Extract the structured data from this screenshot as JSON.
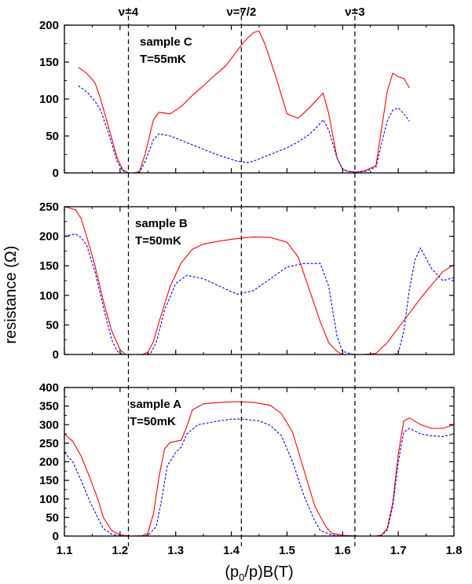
{
  "chart_data": {
    "type": "line",
    "shared_x": {
      "label": "(p₀/p)B(T)",
      "xlim": [
        1.1,
        1.8
      ],
      "ticks": [
        1.1,
        1.2,
        1.3,
        1.4,
        1.5,
        1.6,
        1.7,
        1.8
      ],
      "tick_labels": [
        "1.1",
        "1.2",
        "1.3",
        "1.4",
        "1.5",
        "1.6",
        "1.7",
        "1.8"
      ]
    },
    "ylabel": "resistance (Ω)",
    "filling_factor_lines": [
      {
        "label": "ν=4",
        "x": 1.215
      },
      {
        "label": "ν=7/2",
        "x": 1.418
      },
      {
        "label": "ν=3",
        "x": 1.622
      }
    ],
    "panels": [
      {
        "id": "C",
        "annotation": [
          "sample C",
          "T=55mK"
        ],
        "ylim": [
          0,
          200
        ],
        "yticks": [
          0,
          50,
          100,
          150,
          200
        ],
        "series": [
          {
            "color": "#ff0000",
            "style": "solid",
            "x": [
              1.125,
              1.14,
              1.155,
              1.165,
              1.18,
              1.195,
              1.205,
              1.215,
              1.225,
              1.235,
              1.245,
              1.26,
              1.27,
              1.29,
              1.31,
              1.33,
              1.35,
              1.37,
              1.39,
              1.41,
              1.42,
              1.43,
              1.44,
              1.45,
              1.46,
              1.48,
              1.5,
              1.52,
              1.54,
              1.555,
              1.565,
              1.575,
              1.59,
              1.6,
              1.61,
              1.625,
              1.64,
              1.66,
              1.67,
              1.68,
              1.69,
              1.7,
              1.71,
              1.72
            ],
            "y": [
              143,
              135,
              122,
              100,
              60,
              20,
              4,
              0,
              0,
              2,
              25,
              72,
              82,
              80,
              90,
              105,
              118,
              132,
              145,
              165,
              175,
              183,
              190,
              192,
              175,
              130,
              80,
              74,
              88,
              100,
              108,
              80,
              20,
              5,
              2,
              1,
              3,
              10,
              60,
              110,
              135,
              130,
              128,
              115
            ]
          },
          {
            "color": "#0000ff",
            "style": "dashed",
            "x": [
              1.125,
              1.14,
              1.155,
              1.165,
              1.18,
              1.195,
              1.205,
              1.215,
              1.225,
              1.235,
              1.245,
              1.26,
              1.27,
              1.29,
              1.31,
              1.33,
              1.35,
              1.37,
              1.39,
              1.41,
              1.42,
              1.43,
              1.44,
              1.46,
              1.48,
              1.5,
              1.52,
              1.54,
              1.555,
              1.565,
              1.575,
              1.59,
              1.6,
              1.61,
              1.625,
              1.64,
              1.66,
              1.67,
              1.68,
              1.69,
              1.7,
              1.71,
              1.72
            ],
            "y": [
              118,
              110,
              97,
              85,
              52,
              15,
              3,
              0,
              0,
              1,
              15,
              45,
              53,
              50,
              44,
              38,
              32,
              26,
              21,
              16,
              15,
              14,
              16,
              22,
              28,
              34,
              42,
              52,
              63,
              72,
              58,
              20,
              5,
              2,
              1,
              2,
              8,
              40,
              70,
              85,
              88,
              80,
              70
            ]
          }
        ]
      },
      {
        "id": "B",
        "annotation": [
          "sample B",
          "T=50mK"
        ],
        "ylim": [
          0,
          250
        ],
        "yticks": [
          0,
          50,
          100,
          150,
          200,
          250
        ],
        "series": [
          {
            "color": "#ff0000",
            "style": "solid",
            "x": [
              1.1,
              1.12,
              1.13,
              1.14,
              1.155,
              1.17,
              1.185,
              1.2,
              1.21,
              1.23,
              1.24,
              1.25,
              1.26,
              1.27,
              1.29,
              1.31,
              1.33,
              1.35,
              1.38,
              1.41,
              1.44,
              1.47,
              1.5,
              1.52,
              1.54,
              1.56,
              1.575,
              1.59,
              1.6,
              1.61,
              1.62,
              1.64,
              1.66,
              1.68,
              1.7,
              1.72,
              1.74,
              1.76,
              1.78,
              1.8
            ],
            "y": [
              250,
              245,
              230,
              200,
              150,
              90,
              40,
              8,
              0,
              0,
              0,
              4,
              22,
              55,
              115,
              155,
              178,
              187,
              192,
              196,
              199,
              198,
              190,
              165,
              110,
              55,
              20,
              5,
              0,
              0,
              0,
              0,
              2,
              20,
              45,
              70,
              95,
              118,
              140,
              152
            ]
          },
          {
            "color": "#0000ff",
            "style": "dashed",
            "x": [
              1.1,
              1.12,
              1.13,
              1.14,
              1.155,
              1.17,
              1.185,
              1.195,
              1.205,
              1.215,
              1.23,
              1.245,
              1.255,
              1.265,
              1.28,
              1.3,
              1.32,
              1.35,
              1.38,
              1.41,
              1.44,
              1.47,
              1.5,
              1.53,
              1.56,
              1.575,
              1.59,
              1.6,
              1.62,
              1.64,
              1.66,
              1.68,
              1.69,
              1.7,
              1.71,
              1.72,
              1.73,
              1.74,
              1.76,
              1.78,
              1.8
            ],
            "y": [
              200,
              204,
              198,
              185,
              140,
              80,
              25,
              5,
              0,
              0,
              0,
              0,
              2,
              20,
              75,
              120,
              134,
              128,
              115,
              102,
              108,
              128,
              148,
              154,
              154,
              115,
              30,
              5,
              0,
              0,
              0,
              0,
              0,
              2,
              40,
              110,
              160,
              180,
              145,
              125,
              130
            ]
          }
        ]
      },
      {
        "id": "A",
        "annotation": [
          "sample A",
          "T=50mK"
        ],
        "ylim": [
          0,
          400
        ],
        "yticks": [
          0,
          50,
          100,
          150,
          200,
          250,
          300,
          350,
          400
        ],
        "series": [
          {
            "color": "#ff0000",
            "style": "solid",
            "x": [
              1.1,
              1.115,
              1.13,
              1.145,
              1.16,
              1.17,
              1.185,
              1.2,
              1.22,
              1.24,
              1.25,
              1.26,
              1.27,
              1.28,
              1.29,
              1.31,
              1.32,
              1.33,
              1.35,
              1.38,
              1.41,
              1.44,
              1.47,
              1.49,
              1.51,
              1.53,
              1.55,
              1.57,
              1.58,
              1.6,
              1.63,
              1.66,
              1.67,
              1.68,
              1.69,
              1.7,
              1.71,
              1.72,
              1.74,
              1.76,
              1.78,
              1.8
            ],
            "y": [
              275,
              255,
              215,
              160,
              100,
              50,
              15,
              3,
              0,
              1,
              8,
              60,
              160,
              235,
              252,
              258,
              295,
              340,
              356,
              360,
              362,
              360,
              352,
              330,
              280,
              180,
              80,
              25,
              8,
              2,
              0,
              0,
              3,
              20,
              90,
              220,
              310,
              318,
              300,
              290,
              290,
              300
            ]
          },
          {
            "color": "#0000ff",
            "style": "dashed",
            "x": [
              1.1,
              1.115,
              1.13,
              1.145,
              1.16,
              1.17,
              1.185,
              1.2,
              1.22,
              1.24,
              1.25,
              1.265,
              1.275,
              1.285,
              1.3,
              1.31,
              1.32,
              1.34,
              1.37,
              1.4,
              1.42,
              1.45,
              1.47,
              1.49,
              1.51,
              1.53,
              1.55,
              1.56,
              1.58,
              1.6,
              1.63,
              1.66,
              1.67,
              1.68,
              1.69,
              1.7,
              1.71,
              1.72,
              1.74,
              1.76,
              1.78,
              1.8
            ],
            "y": [
              225,
              200,
              150,
              95,
              50,
              20,
              5,
              0,
              0,
              0,
              2,
              25,
              100,
              190,
              225,
              240,
              275,
              300,
              308,
              315,
              315,
              310,
              298,
              270,
              200,
              110,
              40,
              15,
              3,
              0,
              0,
              0,
              2,
              15,
              80,
              200,
              280,
              290,
              275,
              270,
              268,
              275
            ]
          }
        ]
      }
    ]
  }
}
